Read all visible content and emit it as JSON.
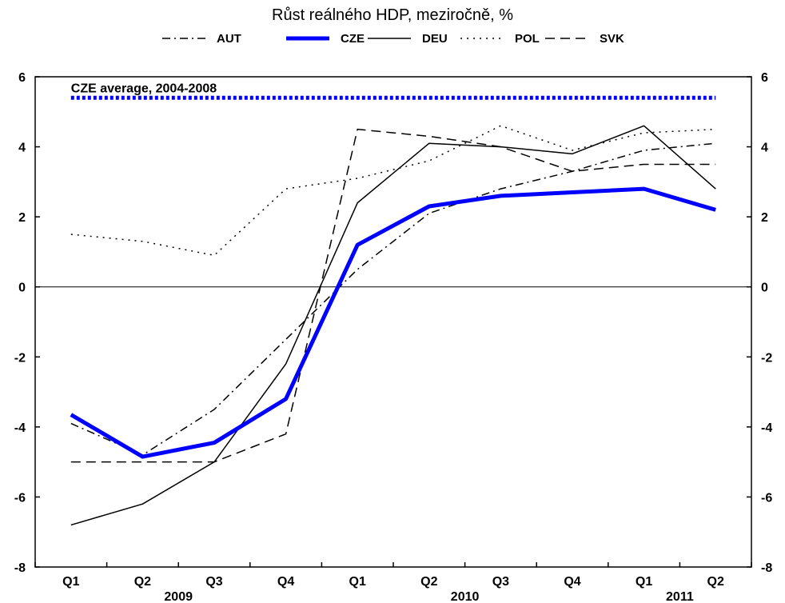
{
  "chart_data": {
    "type": "line",
    "title": "Růst reálného HDP, meziročně, %",
    "categories": [
      "Q1",
      "Q2",
      "Q3",
      "Q4",
      "Q1",
      "Q2",
      "Q3",
      "Q4",
      "Q1",
      "Q2"
    ],
    "years": [
      {
        "label": "2009",
        "from": 0,
        "to": 3
      },
      {
        "label": "2010",
        "from": 4,
        "to": 7
      },
      {
        "label": "2011",
        "from": 8,
        "to": 9
      }
    ],
    "ylim": [
      -8,
      6
    ],
    "yticks": [
      -8,
      -6,
      -4,
      -2,
      0,
      2,
      4,
      6
    ],
    "grid": false,
    "legend_position": "top",
    "series": [
      {
        "name": "AUT",
        "style": "dashdot",
        "color": "#000000",
        "width": 1.5,
        "values": [
          -3.9,
          -4.8,
          -3.5,
          -1.5,
          0.5,
          2.1,
          2.8,
          3.3,
          3.9,
          4.1
        ]
      },
      {
        "name": "CZE",
        "style": "solid",
        "color": "#0000ff",
        "width": 5,
        "values": [
          -3.65,
          -4.85,
          -4.45,
          -3.2,
          1.2,
          2.3,
          2.6,
          2.7,
          2.8,
          2.2
        ]
      },
      {
        "name": "DEU",
        "style": "solid",
        "color": "#000000",
        "width": 1.5,
        "values": [
          -6.8,
          -6.2,
          -5.0,
          -2.2,
          2.4,
          4.1,
          4.0,
          3.8,
          4.6,
          2.8
        ]
      },
      {
        "name": "POL",
        "style": "dotted",
        "color": "#000000",
        "width": 1.5,
        "values": [
          1.5,
          1.3,
          0.9,
          2.8,
          3.1,
          3.6,
          4.6,
          3.9,
          4.4,
          4.5
        ]
      },
      {
        "name": "SVK",
        "style": "dashed",
        "color": "#000000",
        "width": 1.5,
        "values": [
          -5.0,
          -5.0,
          -5.0,
          -4.2,
          4.5,
          4.3,
          4.0,
          3.3,
          3.5,
          3.5
        ]
      }
    ],
    "reference_line": {
      "label": "CZE average, 2004-2008",
      "value": 5.4,
      "color": "#0000ff"
    }
  }
}
